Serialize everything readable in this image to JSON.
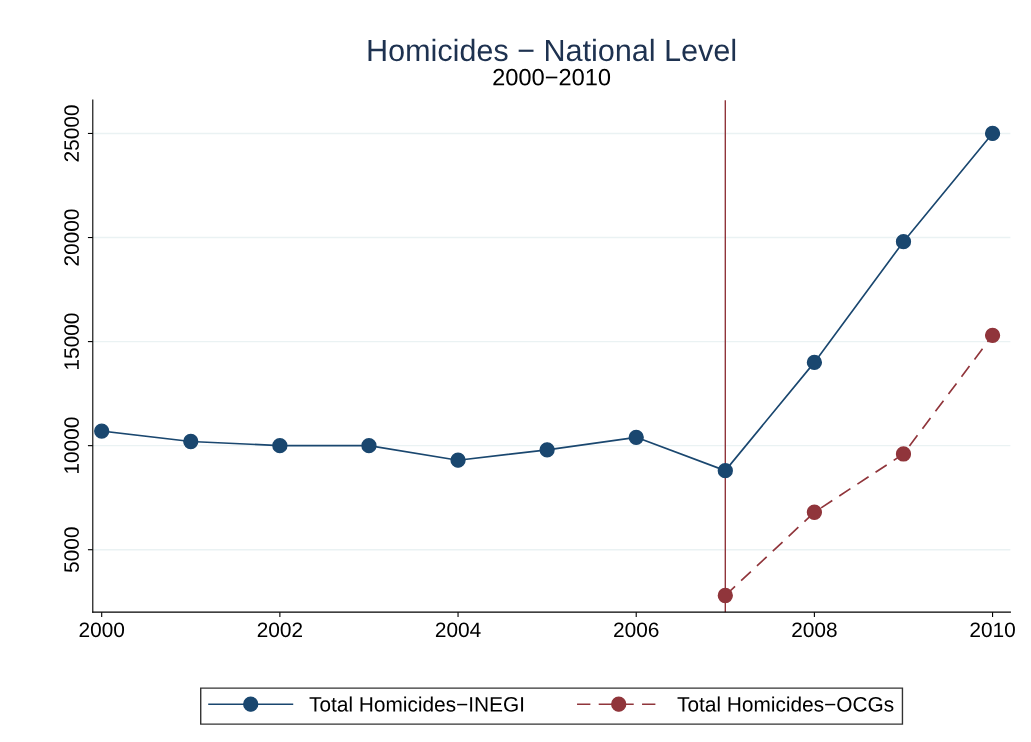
{
  "chart_data": {
    "type": "line",
    "title": "Homicides − National Level",
    "subtitle": "2000−2010",
    "x": [
      2000,
      2001,
      2002,
      2003,
      2004,
      2005,
      2006,
      2007,
      2008,
      2009,
      2010
    ],
    "series": [
      {
        "name": "Total Homicides−INEGI",
        "color": "#1a476f",
        "line_style": "solid",
        "values": [
          10700,
          10200,
          10000,
          10000,
          9300,
          9800,
          10400,
          8800,
          14000,
          19800,
          25000
        ]
      },
      {
        "name": "Total Homicides−OCGs",
        "color": "#90353b",
        "line_style": "dashed",
        "values": [
          null,
          null,
          null,
          null,
          null,
          null,
          null,
          2800,
          6800,
          9600,
          15300
        ]
      }
    ],
    "xlim": [
      1999.9,
      2010.2
    ],
    "xticks": [
      2000,
      2002,
      2004,
      2006,
      2008,
      2010
    ],
    "ylim": [
      2000,
      26600
    ],
    "yticks": [
      5000,
      10000,
      15000,
      20000,
      25000
    ],
    "ref_lines": [
      {
        "axis": "x",
        "value": 2007,
        "color": "#90353b"
      }
    ],
    "grid": "y",
    "legend": "bottom",
    "marker": "circle"
  }
}
